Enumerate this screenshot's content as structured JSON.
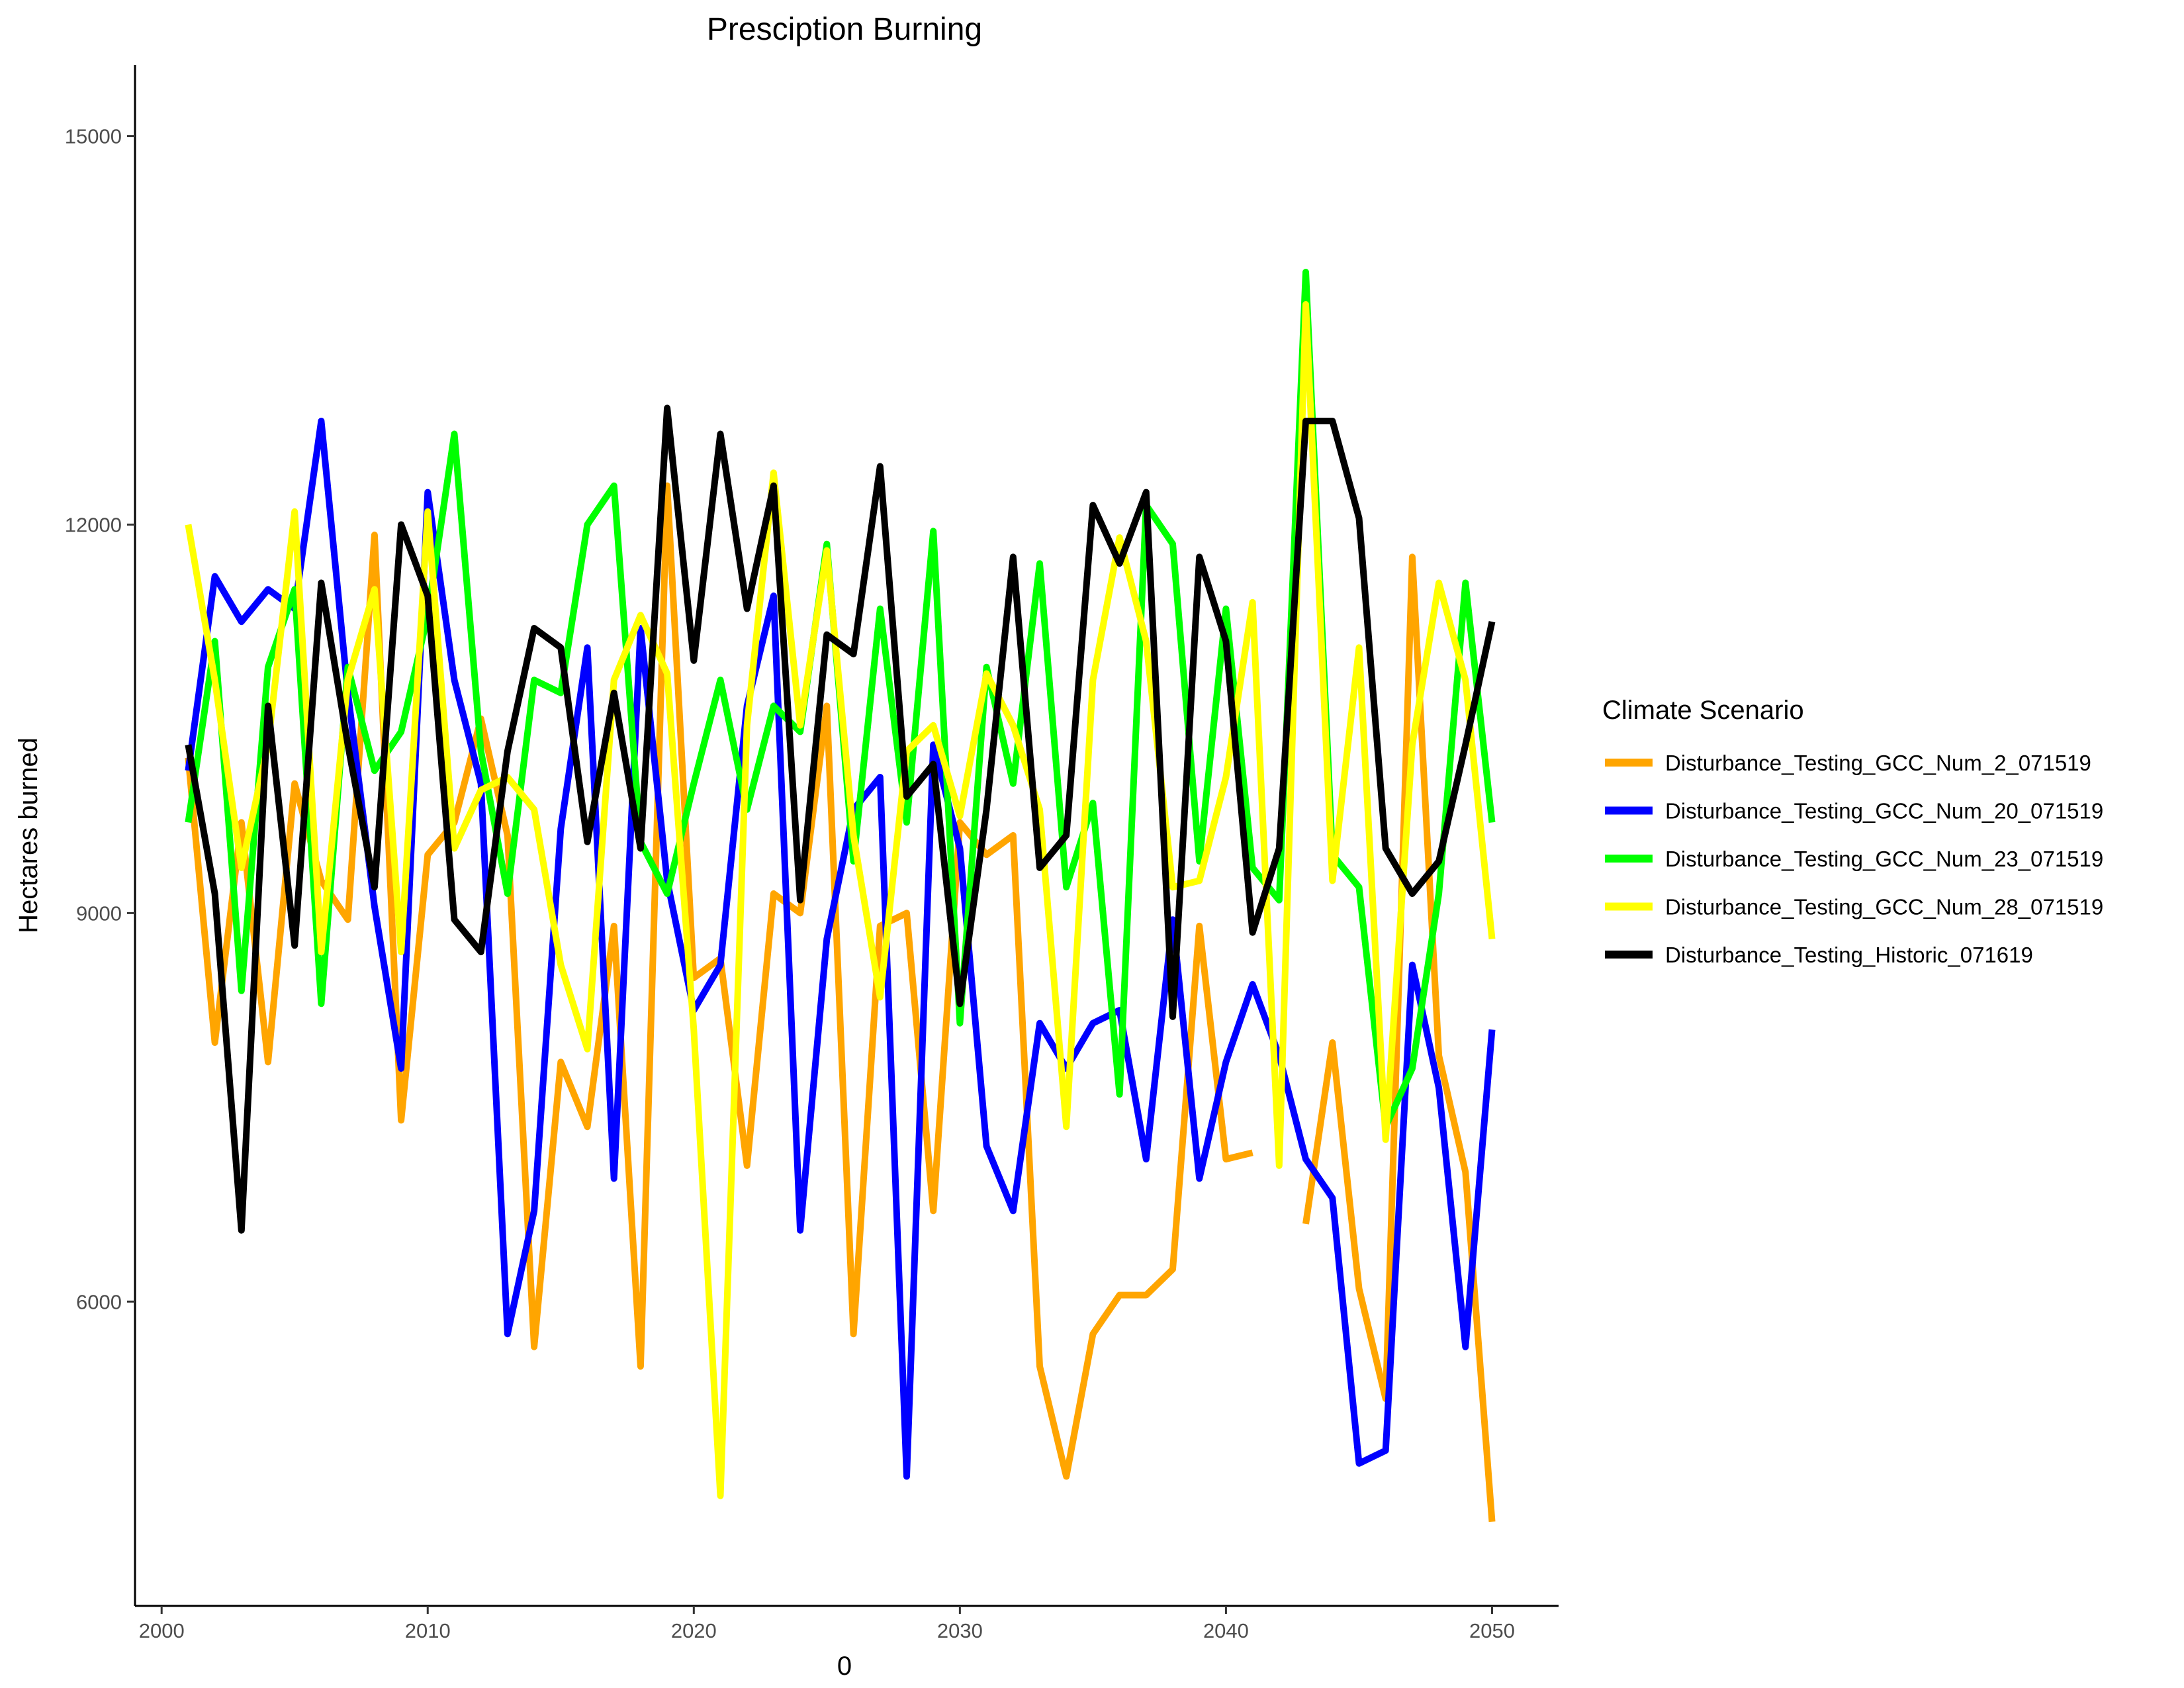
{
  "chart_data": {
    "type": "line",
    "title": "Presciption Burning",
    "xlabel": "0",
    "ylabel": "Hectares burned",
    "xlim": [
      1999,
      2052.5
    ],
    "ylim": [
      3650,
      15550
    ],
    "x_ticks": [
      2000,
      2010,
      2020,
      2030,
      2040,
      2050
    ],
    "y_ticks": [
      6000,
      9000,
      12000,
      15000
    ],
    "grid": false,
    "legend_title": "Climate Scenario",
    "legend_position": "right",
    "x": [
      2001,
      2002,
      2003,
      2004,
      2005,
      2006,
      2007,
      2008,
      2009,
      2010,
      2011,
      2012,
      2013,
      2014,
      2015,
      2016,
      2017,
      2018,
      2019,
      2020,
      2021,
      2022,
      2023,
      2024,
      2025,
      2026,
      2027,
      2028,
      2029,
      2030,
      2031,
      2032,
      2033,
      2034,
      2035,
      2036,
      2037,
      2038,
      2039,
      2040,
      2041,
      2042,
      2043,
      2044,
      2045,
      2046,
      2047,
      2048,
      2049,
      2050
    ],
    "series": [
      {
        "name": "Disturbance_Testing_GCC_Num_2_071519",
        "color": "#FFA500",
        "values": [
          10200,
          8000,
          9700,
          7850,
          10000,
          9250,
          8950,
          11920,
          7400,
          9450,
          9700,
          10500,
          9600,
          5650,
          7850,
          7350,
          8900,
          5500,
          12300,
          8500,
          8650,
          7050,
          9150,
          9000,
          10600,
          5750,
          8900,
          9000,
          6700,
          9700,
          9450,
          9600,
          5500,
          4650,
          5750,
          6050,
          6050,
          6250,
          8900,
          7100,
          7150,
          null,
          6600,
          8000,
          6100,
          5250,
          11750,
          7900,
          7000,
          4300
        ]
      },
      {
        "name": "Disturbance_Testing_GCC_Num_20_071519",
        "color": "#0000FF",
        "values": [
          10100,
          11600,
          11250,
          11500,
          11350,
          12800,
          10700,
          9050,
          7800,
          12250,
          10800,
          10000,
          5750,
          6700,
          9650,
          11050,
          6950,
          11200,
          9250,
          8250,
          8600,
          10600,
          11450,
          6550,
          8800,
          9800,
          10050,
          4650,
          10300,
          9500,
          7200,
          6700,
          8150,
          7800,
          8150,
          8250,
          7100,
          8950,
          6950,
          7850,
          8450,
          7900,
          7100,
          6800,
          4750,
          4850,
          8600,
          7650,
          5650,
          8100
        ]
      },
      {
        "name": "Disturbance_Testing_GCC_Num_23_071519",
        "color": "#00FF00",
        "values": [
          9700,
          11100,
          8400,
          10900,
          11500,
          8300,
          10900,
          10100,
          10400,
          11300,
          12700,
          10250,
          9150,
          10800,
          10700,
          12000,
          12300,
          9550,
          9150,
          10000,
          10800,
          9800,
          10600,
          10400,
          11850,
          9400,
          11350,
          9700,
          11950,
          8150,
          10900,
          10000,
          11700,
          9200,
          9850,
          7600,
          12150,
          11850,
          9400,
          11350,
          9350,
          9100,
          13950,
          9450,
          9200,
          7350,
          7800,
          9150,
          11550,
          9700
        ]
      },
      {
        "name": "Disturbance_Testing_GCC_Num_28_071519",
        "color": "#FFFF00",
        "values": [
          12000,
          10800,
          9350,
          10300,
          12100,
          8700,
          10800,
          11500,
          8700,
          12100,
          9500,
          9950,
          10050,
          9800,
          8600,
          7950,
          10800,
          11300,
          10850,
          8100,
          4500,
          10450,
          12400,
          10450,
          11800,
          9600,
          8350,
          10250,
          10450,
          9750,
          10850,
          10450,
          9800,
          7350,
          10800,
          11900,
          11100,
          9200,
          9250,
          10050,
          11400,
          7050,
          13700,
          9250,
          11050,
          7250,
          10300,
          11550,
          10800,
          8800
        ]
      },
      {
        "name": "Disturbance_Testing_Historic_071619",
        "color": "#000000",
        "values": [
          10300,
          9150,
          6550,
          10600,
          8750,
          11550,
          10300,
          9200,
          12000,
          11450,
          8950,
          8700,
          10250,
          11200,
          11050,
          9550,
          10700,
          9500,
          12900,
          10950,
          12700,
          11350,
          12300,
          9100,
          11150,
          11000,
          12450,
          9900,
          10150,
          8300,
          9800,
          11750,
          9350,
          9600,
          12150,
          11700,
          12250,
          8200,
          11750,
          11100,
          8850,
          9500,
          12800,
          12800,
          12050,
          9500,
          9150,
          9400,
          10300,
          11250
        ]
      }
    ]
  }
}
